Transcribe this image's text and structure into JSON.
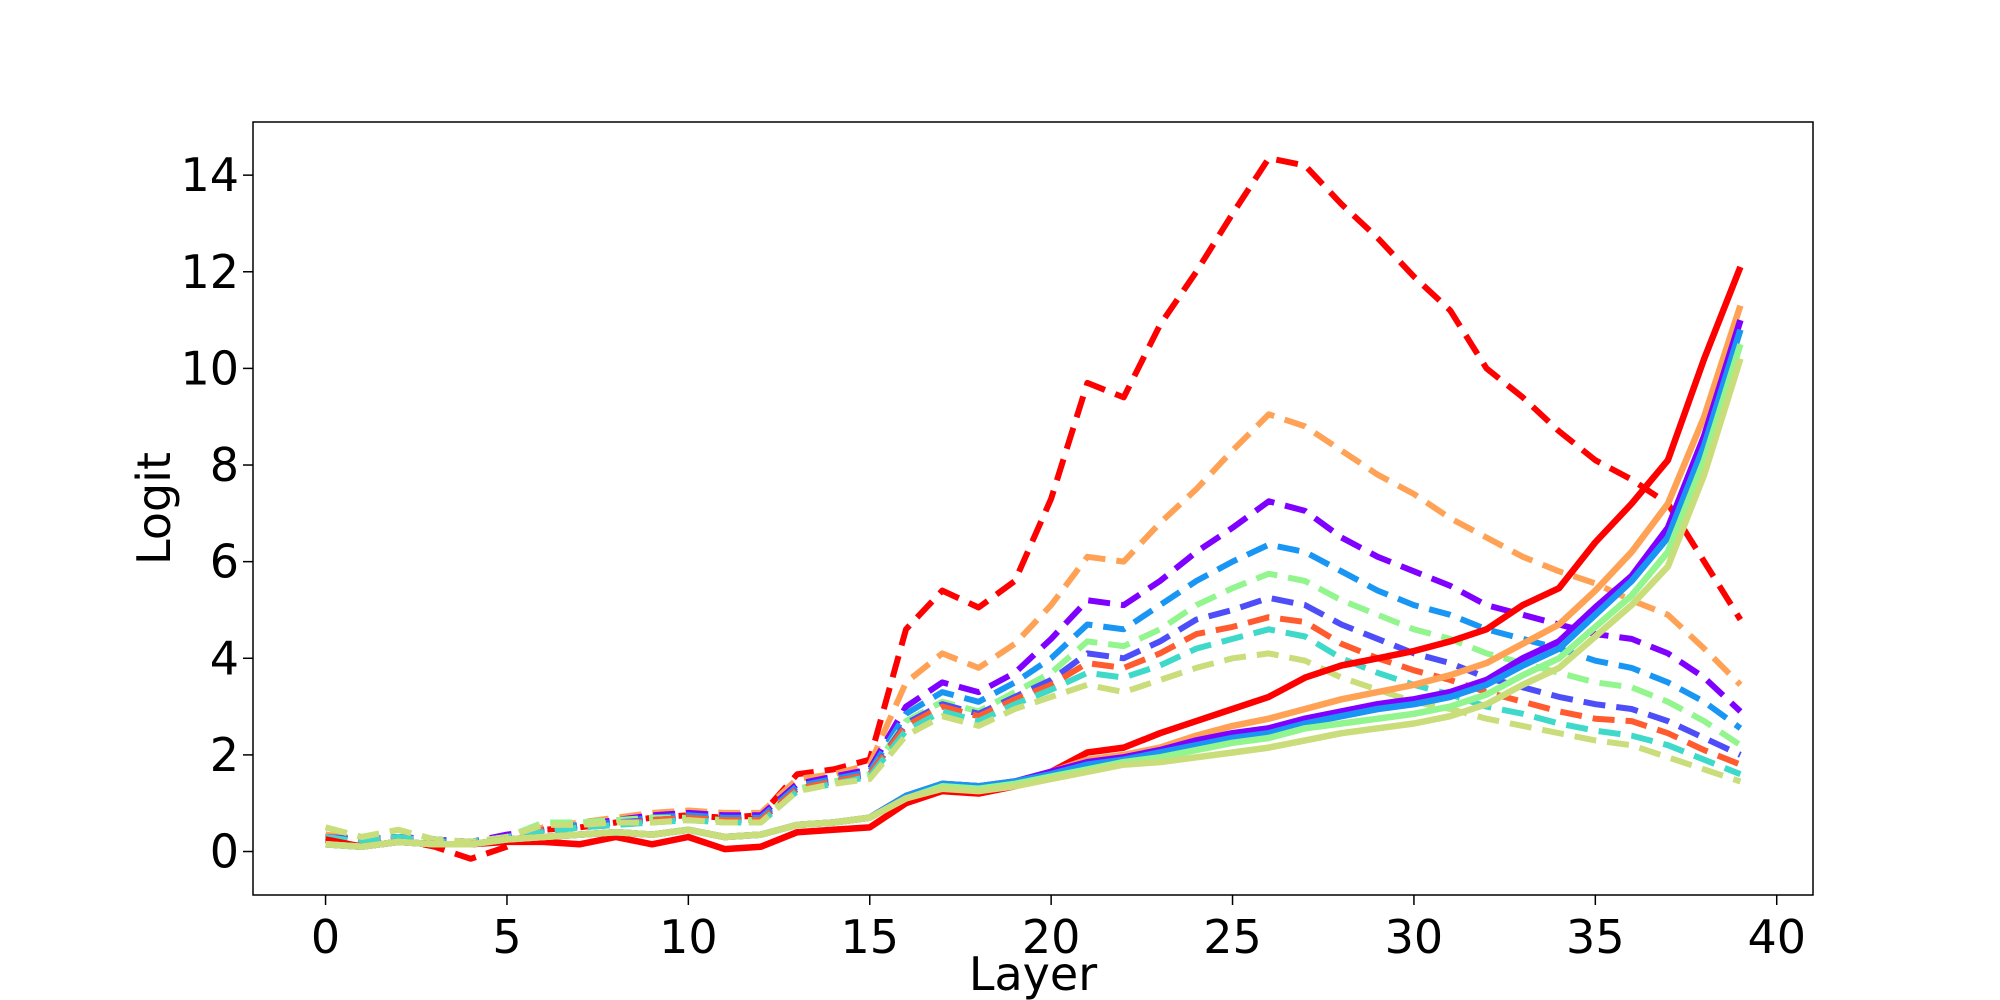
{
  "chart_data": {
    "type": "line",
    "title": "",
    "xlabel": "Layer",
    "ylabel": "Logit",
    "xlim": [
      -2,
      41
    ],
    "ylim": [
      -0.9,
      15.1
    ],
    "xticks": [
      0,
      5,
      10,
      15,
      20,
      25,
      30,
      35,
      40
    ],
    "yticks": [
      0,
      2,
      4,
      6,
      8,
      10,
      12,
      14
    ],
    "grid": false,
    "legend": "none",
    "x": [
      0,
      1,
      2,
      3,
      4,
      5,
      6,
      7,
      8,
      9,
      10,
      11,
      12,
      13,
      14,
      15,
      16,
      17,
      18,
      19,
      20,
      21,
      22,
      23,
      24,
      25,
      26,
      27,
      28,
      29,
      30,
      31,
      32,
      33,
      34,
      35,
      36,
      37,
      38,
      39
    ],
    "series": [
      {
        "color": "#ff0000",
        "style": "dashed",
        "values": [
          0.35,
          0.2,
          0.25,
          0.1,
          -0.15,
          0.1,
          0.45,
          0.5,
          0.6,
          0.7,
          0.75,
          0.7,
          0.75,
          1.6,
          1.7,
          1.9,
          4.6,
          5.4,
          5.05,
          5.6,
          7.3,
          9.7,
          9.4,
          10.9,
          12.0,
          13.2,
          14.35,
          14.2,
          13.4,
          12.7,
          11.9,
          11.2,
          10.0,
          9.4,
          8.7,
          8.1,
          7.7,
          7.2,
          6.0,
          4.8
        ]
      },
      {
        "color": "#ffa256",
        "style": "dashed",
        "values": [
          0.35,
          0.25,
          0.3,
          0.2,
          0.2,
          0.3,
          0.5,
          0.6,
          0.7,
          0.8,
          0.85,
          0.8,
          0.8,
          1.5,
          1.6,
          1.8,
          3.5,
          4.1,
          3.8,
          4.3,
          5.1,
          6.1,
          6.0,
          6.8,
          7.5,
          8.3,
          9.05,
          8.8,
          8.3,
          7.8,
          7.4,
          6.9,
          6.5,
          6.1,
          5.8,
          5.55,
          5.2,
          4.9,
          4.2,
          3.45
        ]
      },
      {
        "color": "#7f00ff",
        "style": "dashed",
        "values": [
          0.3,
          0.25,
          0.3,
          0.25,
          0.2,
          0.35,
          0.45,
          0.55,
          0.65,
          0.75,
          0.8,
          0.75,
          0.75,
          1.4,
          1.55,
          1.7,
          3.0,
          3.5,
          3.3,
          3.7,
          4.4,
          5.2,
          5.1,
          5.6,
          6.2,
          6.7,
          7.25,
          7.05,
          6.5,
          6.1,
          5.8,
          5.5,
          5.1,
          4.9,
          4.7,
          4.5,
          4.4,
          4.1,
          3.6,
          2.9
        ]
      },
      {
        "color": "#1996f3",
        "style": "dashed",
        "values": [
          0.3,
          0.25,
          0.3,
          0.25,
          0.2,
          0.3,
          0.45,
          0.55,
          0.6,
          0.7,
          0.75,
          0.7,
          0.7,
          1.35,
          1.5,
          1.65,
          2.85,
          3.3,
          3.1,
          3.5,
          4.0,
          4.7,
          4.6,
          5.1,
          5.6,
          6.0,
          6.35,
          6.2,
          5.8,
          5.4,
          5.1,
          4.9,
          4.6,
          4.4,
          4.2,
          3.95,
          3.8,
          3.5,
          3.1,
          2.55
        ]
      },
      {
        "color": "#93f58e",
        "style": "dashed",
        "values": [
          0.5,
          0.3,
          0.45,
          0.25,
          0.2,
          0.3,
          0.6,
          0.6,
          0.65,
          0.7,
          0.7,
          0.65,
          0.65,
          1.3,
          1.45,
          1.6,
          2.7,
          3.1,
          2.9,
          3.3,
          3.7,
          4.35,
          4.25,
          4.6,
          5.1,
          5.45,
          5.75,
          5.6,
          5.2,
          4.9,
          4.6,
          4.4,
          4.1,
          3.9,
          3.7,
          3.5,
          3.4,
          3.1,
          2.7,
          2.2
        ]
      },
      {
        "color": "#4e4ef8",
        "style": "dashed",
        "values": [
          0.3,
          0.25,
          0.3,
          0.25,
          0.2,
          0.3,
          0.45,
          0.5,
          0.6,
          0.65,
          0.7,
          0.65,
          0.65,
          1.3,
          1.45,
          1.6,
          2.65,
          3.05,
          2.85,
          3.2,
          3.55,
          4.1,
          4.0,
          4.35,
          4.8,
          5.0,
          5.25,
          5.1,
          4.7,
          4.4,
          4.1,
          3.9,
          3.6,
          3.4,
          3.2,
          3.05,
          2.95,
          2.7,
          2.35,
          2.0
        ]
      },
      {
        "color": "#ff5b2f",
        "style": "dashed",
        "values": [
          0.3,
          0.2,
          0.3,
          0.2,
          0.2,
          0.3,
          0.45,
          0.5,
          0.55,
          0.65,
          0.7,
          0.65,
          0.65,
          1.3,
          1.45,
          1.6,
          2.6,
          3.0,
          2.8,
          3.15,
          3.45,
          3.9,
          3.8,
          4.1,
          4.5,
          4.65,
          4.85,
          4.75,
          4.3,
          4.0,
          3.75,
          3.55,
          3.3,
          3.1,
          2.9,
          2.75,
          2.7,
          2.45,
          2.1,
          1.8
        ]
      },
      {
        "color": "#3fd9c9",
        "style": "dashed",
        "values": [
          0.3,
          0.2,
          0.3,
          0.2,
          0.2,
          0.3,
          0.4,
          0.5,
          0.55,
          0.6,
          0.65,
          0.6,
          0.6,
          1.25,
          1.4,
          1.55,
          2.5,
          2.9,
          2.7,
          3.05,
          3.35,
          3.7,
          3.6,
          3.85,
          4.2,
          4.4,
          4.6,
          4.45,
          4.0,
          3.7,
          3.45,
          3.25,
          3.0,
          2.85,
          2.65,
          2.5,
          2.4,
          2.2,
          1.9,
          1.6
        ]
      },
      {
        "color": "#c9dd7a",
        "style": "dashed",
        "values": [
          0.5,
          0.3,
          0.45,
          0.25,
          0.2,
          0.3,
          0.55,
          0.55,
          0.6,
          0.6,
          0.65,
          0.6,
          0.6,
          1.25,
          1.4,
          1.5,
          2.4,
          2.8,
          2.6,
          2.95,
          3.2,
          3.45,
          3.3,
          3.55,
          3.8,
          4.0,
          4.1,
          3.95,
          3.6,
          3.35,
          3.1,
          2.95,
          2.75,
          2.6,
          2.45,
          2.3,
          2.2,
          1.95,
          1.7,
          1.45
        ]
      },
      {
        "color": "#ff0000",
        "style": "solid",
        "values": [
          0.25,
          0.1,
          0.2,
          0.15,
          0.15,
          0.2,
          0.2,
          0.15,
          0.3,
          0.15,
          0.3,
          0.05,
          0.1,
          0.4,
          0.45,
          0.5,
          1.0,
          1.25,
          1.2,
          1.35,
          1.65,
          2.05,
          2.15,
          2.45,
          2.7,
          2.95,
          3.2,
          3.6,
          3.85,
          4.0,
          4.15,
          4.35,
          4.6,
          5.1,
          5.45,
          6.4,
          7.2,
          8.1,
          10.2,
          12.1
        ]
      },
      {
        "color": "#ffa256",
        "style": "solid",
        "values": [
          0.15,
          0.1,
          0.2,
          0.15,
          0.15,
          0.25,
          0.3,
          0.35,
          0.4,
          0.35,
          0.45,
          0.3,
          0.35,
          0.55,
          0.6,
          0.7,
          1.15,
          1.4,
          1.35,
          1.45,
          1.65,
          1.9,
          2.0,
          2.15,
          2.4,
          2.6,
          2.75,
          2.95,
          3.15,
          3.3,
          3.45,
          3.65,
          3.9,
          4.3,
          4.7,
          5.4,
          6.2,
          7.2,
          9.0,
          11.3
        ]
      },
      {
        "color": "#7f00ff",
        "style": "solid",
        "values": [
          0.15,
          0.1,
          0.2,
          0.15,
          0.15,
          0.25,
          0.3,
          0.35,
          0.4,
          0.35,
          0.45,
          0.3,
          0.35,
          0.55,
          0.6,
          0.7,
          1.15,
          1.4,
          1.35,
          1.45,
          1.65,
          1.85,
          1.95,
          2.1,
          2.3,
          2.45,
          2.55,
          2.75,
          2.9,
          3.05,
          3.15,
          3.3,
          3.55,
          4.0,
          4.35,
          5.05,
          5.7,
          6.7,
          8.6,
          11.0
        ]
      },
      {
        "color": "#1996f3",
        "style": "solid",
        "values": [
          0.15,
          0.1,
          0.2,
          0.15,
          0.15,
          0.25,
          0.3,
          0.35,
          0.4,
          0.35,
          0.45,
          0.3,
          0.35,
          0.55,
          0.6,
          0.7,
          1.15,
          1.4,
          1.35,
          1.45,
          1.6,
          1.8,
          1.9,
          2.05,
          2.2,
          2.35,
          2.45,
          2.65,
          2.8,
          2.95,
          3.05,
          3.2,
          3.45,
          3.85,
          4.2,
          4.9,
          5.6,
          6.5,
          8.4,
          10.8
        ]
      },
      {
        "color": "#93f58e",
        "style": "solid",
        "values": [
          0.15,
          0.1,
          0.2,
          0.15,
          0.15,
          0.25,
          0.3,
          0.35,
          0.4,
          0.35,
          0.45,
          0.3,
          0.35,
          0.55,
          0.6,
          0.7,
          1.1,
          1.35,
          1.3,
          1.4,
          1.55,
          1.7,
          1.85,
          1.95,
          2.1,
          2.25,
          2.35,
          2.55,
          2.65,
          2.75,
          2.85,
          3.0,
          3.25,
          3.65,
          4.0,
          4.65,
          5.3,
          6.2,
          8.1,
          10.5
        ]
      },
      {
        "color": "#c9dd7a",
        "style": "solid",
        "values": [
          0.15,
          0.1,
          0.2,
          0.15,
          0.15,
          0.25,
          0.3,
          0.35,
          0.4,
          0.35,
          0.45,
          0.3,
          0.35,
          0.55,
          0.6,
          0.7,
          1.1,
          1.3,
          1.25,
          1.35,
          1.5,
          1.65,
          1.8,
          1.85,
          1.95,
          2.05,
          2.15,
          2.3,
          2.45,
          2.55,
          2.65,
          2.8,
          3.05,
          3.45,
          3.8,
          4.45,
          5.1,
          5.9,
          7.8,
          10.2
        ]
      }
    ]
  }
}
